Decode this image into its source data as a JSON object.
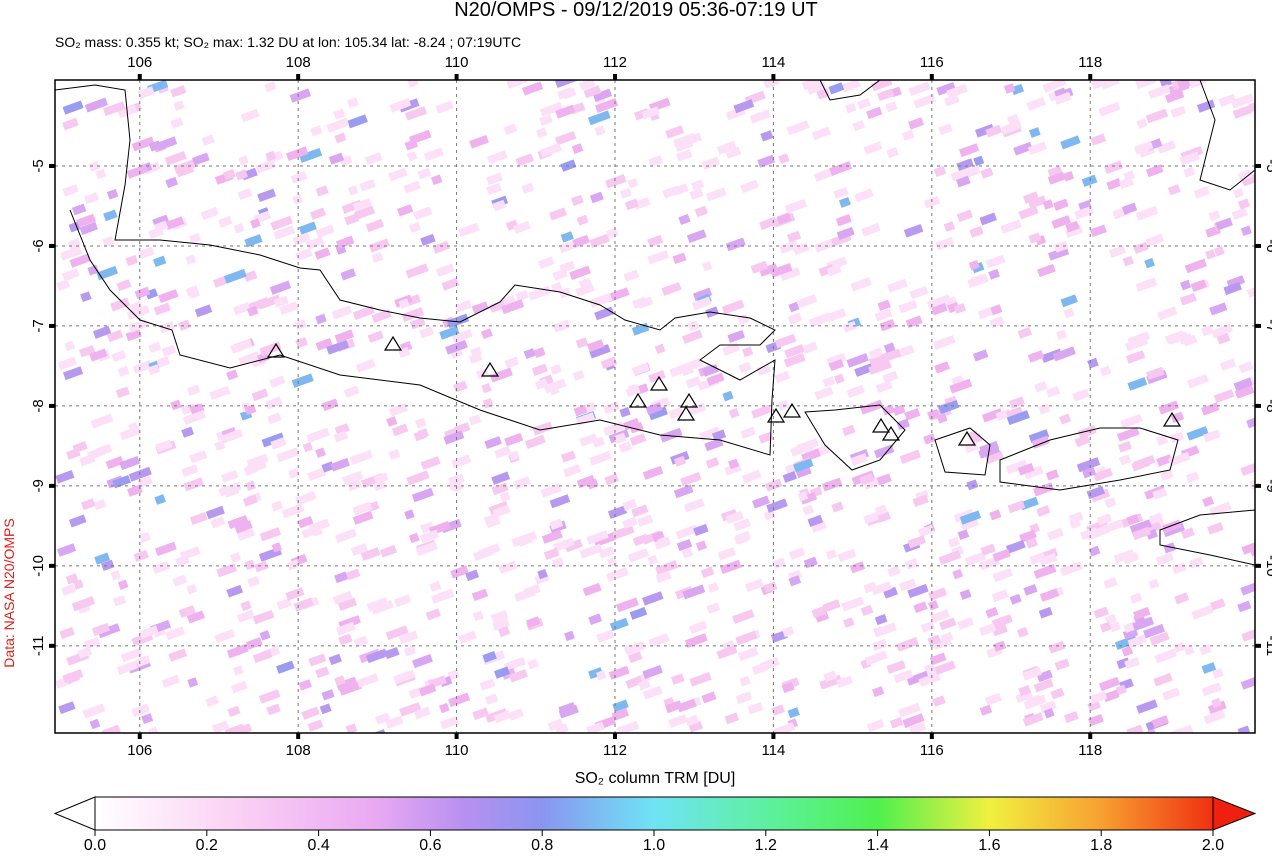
{
  "title": "N20/OMPS - 09/12/2019 05:36-07:19 UT",
  "subtitle": "SO₂ mass: 0.355 kt; SO₂ max: 1.32 DU at lon: 105.34 lat: -8.24 ; 07:19UTC",
  "map": {
    "lon_range": [
      104.93,
      120.08
    ],
    "lat_range": [
      -3.925,
      -12.09
    ],
    "lon_ticks": [
      106,
      108,
      110,
      112,
      114,
      116,
      118
    ],
    "lat_ticks": [
      -5,
      -6,
      -7,
      -8,
      -9,
      -10,
      -11
    ]
  },
  "credit": "Data: NASA N20/OMPS",
  "colorbar": {
    "label": "SO₂ column TRM [DU]",
    "range": [
      0,
      2
    ],
    "ticks": [
      {
        "value": 0,
        "label": "0.0"
      },
      {
        "value": 0.2,
        "label": "0.2"
      },
      {
        "value": 0.4,
        "label": "0.4"
      },
      {
        "value": 0.6,
        "label": "0.6"
      },
      {
        "value": 0.8,
        "label": "0.8"
      },
      {
        "value": 1,
        "label": "1.0"
      },
      {
        "value": 1.2,
        "label": "1.2"
      },
      {
        "value": 1.4,
        "label": "1.4"
      },
      {
        "value": 1.6,
        "label": "1.6"
      },
      {
        "value": 1.8,
        "label": "1.8"
      },
      {
        "value": 2,
        "label": "2.0"
      }
    ]
  }
}
